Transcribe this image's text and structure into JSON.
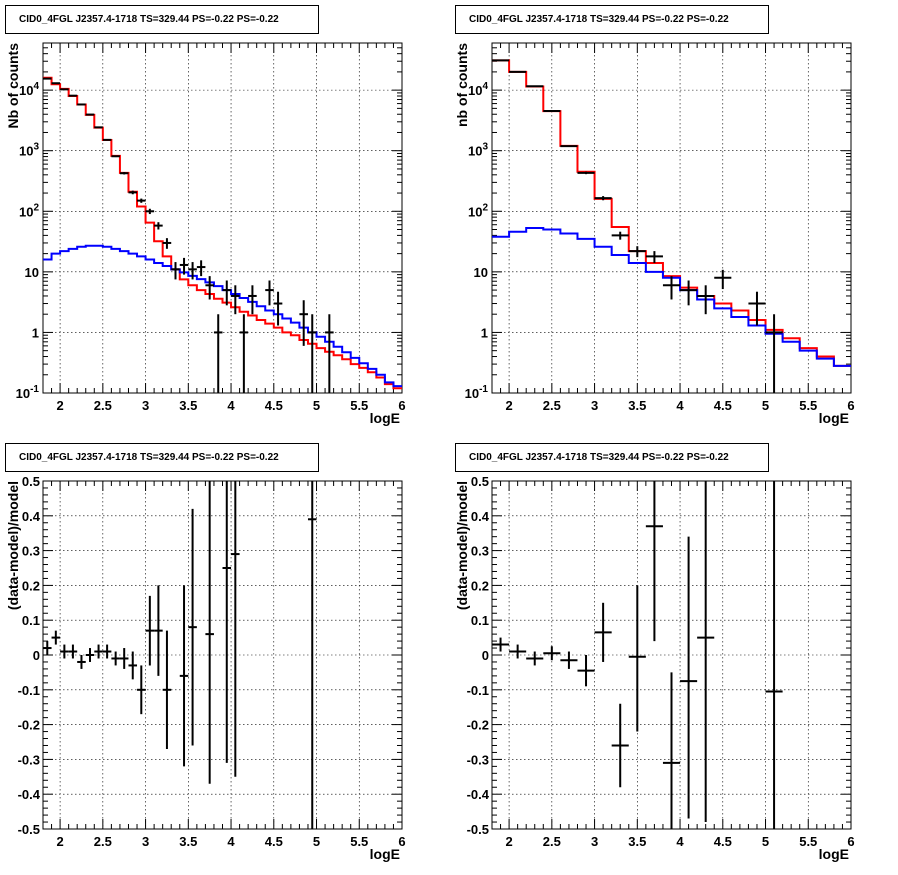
{
  "chart_data": [
    {
      "type": "step-histogram",
      "scale": "log",
      "title": "CID0_4FGL J2357.4-1718 TS=329.44 PS=-0.22 PS=-0.22",
      "xlabel": "logE",
      "ylabel": "Nb of counts",
      "xlim": [
        1.8,
        6.0
      ],
      "ylim": [
        0.1,
        60000
      ],
      "xticks": [
        "2",
        "2.5",
        "3",
        "3.5",
        "4",
        "4.5",
        "5",
        "5.5",
        "6"
      ],
      "yticks": [
        "10^-1",
        "1",
        "10",
        "10^2",
        "10^3",
        "10^4"
      ],
      "grid": true,
      "bin_edges": [
        1.8,
        1.9,
        2.0,
        2.1,
        2.2,
        2.3,
        2.4,
        2.5,
        2.6,
        2.7,
        2.8,
        2.9,
        3.0,
        3.1,
        3.2,
        3.3,
        3.4,
        3.5,
        3.6,
        3.7,
        3.8,
        3.9,
        4.0,
        4.1,
        4.2,
        4.3,
        4.4,
        4.5,
        4.6,
        4.7,
        4.8,
        4.9,
        5.0,
        5.1,
        5.2,
        5.3,
        5.4,
        5.5,
        5.6,
        5.7,
        5.8,
        5.9,
        6.0
      ],
      "series": [
        {
          "color": "#ff0000",
          "values": [
            16000,
            12500,
            10500,
            8000,
            5800,
            3900,
            2400,
            1500,
            820,
            430,
            210,
            120,
            65,
            32,
            18,
            11,
            7.5,
            6,
            5,
            4.3,
            3.6,
            3.1,
            2.6,
            2.2,
            1.9,
            1.6,
            1.4,
            1.2,
            1.0,
            0.9,
            0.75,
            0.65,
            0.55,
            0.48,
            0.42,
            0.36,
            0.3,
            0.26,
            0.22,
            0.18,
            0.14,
            0.12
          ]
        },
        {
          "color": "#0000ff",
          "values": [
            16,
            20,
            22,
            24,
            26,
            27,
            27,
            26,
            24,
            22,
            20,
            18,
            16,
            14,
            12.5,
            11,
            9.8,
            8.6,
            7.6,
            6.7,
            5.8,
            5.0,
            4.3,
            3.7,
            3.2,
            2.7,
            2.3,
            2.0,
            1.7,
            1.45,
            1.2,
            1.0,
            0.85,
            0.7,
            0.58,
            0.47,
            0.38,
            0.31,
            0.25,
            0.2,
            0.15,
            0.13
          ]
        }
      ],
      "points": [
        {
          "x": 1.85,
          "y": 15500,
          "xerr": 0.05,
          "ylo": 15300,
          "yhi": 15700
        },
        {
          "x": 1.95,
          "y": 13000,
          "xerr": 0.05,
          "ylo": 12800,
          "yhi": 13200
        },
        {
          "x": 2.05,
          "y": 10300,
          "xerr": 0.05,
          "ylo": 10100,
          "yhi": 10500
        },
        {
          "x": 2.15,
          "y": 8100,
          "xerr": 0.05,
          "ylo": 7950,
          "yhi": 8250
        },
        {
          "x": 2.25,
          "y": 5800,
          "xerr": 0.05,
          "ylo": 5700,
          "yhi": 5900
        },
        {
          "x": 2.35,
          "y": 3950,
          "xerr": 0.05,
          "ylo": 3880,
          "yhi": 4020
        },
        {
          "x": 2.45,
          "y": 2430,
          "xerr": 0.05,
          "ylo": 2380,
          "yhi": 2480
        },
        {
          "x": 2.55,
          "y": 1510,
          "xerr": 0.05,
          "ylo": 1470,
          "yhi": 1550
        },
        {
          "x": 2.65,
          "y": 810,
          "xerr": 0.05,
          "ylo": 785,
          "yhi": 835
        },
        {
          "x": 2.75,
          "y": 425,
          "xerr": 0.05,
          "ylo": 405,
          "yhi": 445
        },
        {
          "x": 2.85,
          "y": 205,
          "xerr": 0.05,
          "ylo": 191,
          "yhi": 219
        },
        {
          "x": 2.95,
          "y": 150,
          "xerr": 0.05,
          "ylo": 138,
          "yhi": 162
        },
        {
          "x": 3.05,
          "y": 100,
          "xerr": 0.05,
          "ylo": 90,
          "yhi": 110
        },
        {
          "x": 3.15,
          "y": 58,
          "xerr": 0.05,
          "ylo": 50,
          "yhi": 66
        },
        {
          "x": 3.25,
          "y": 30,
          "xerr": 0.05,
          "ylo": 24,
          "yhi": 36
        },
        {
          "x": 3.35,
          "y": 11,
          "xerr": 0.05,
          "ylo": 7.5,
          "yhi": 14.5
        },
        {
          "x": 3.45,
          "y": 13,
          "xerr": 0.05,
          "ylo": 9,
          "yhi": 17
        },
        {
          "x": 3.55,
          "y": 11,
          "xerr": 0.05,
          "ylo": 7.5,
          "yhi": 14.5
        },
        {
          "x": 3.65,
          "y": 12,
          "xerr": 0.05,
          "ylo": 8.5,
          "yhi": 15.5
        },
        {
          "x": 3.75,
          "y": 6,
          "xerr": 0.05,
          "ylo": 3.5,
          "yhi": 8.5
        },
        {
          "x": 3.85,
          "y": 1,
          "xerr": 0.05,
          "ylo": 0.1,
          "yhi": 2
        },
        {
          "x": 3.95,
          "y": 5,
          "xerr": 0.05,
          "ylo": 2.8,
          "yhi": 7.2
        },
        {
          "x": 4.05,
          "y": 4,
          "xerr": 0.05,
          "ylo": 2,
          "yhi": 6
        },
        {
          "x": 4.15,
          "y": 1,
          "xerr": 0.05,
          "ylo": 0.1,
          "yhi": 2
        },
        {
          "x": 4.25,
          "y": 4,
          "xerr": 0.05,
          "ylo": 2,
          "yhi": 6
        },
        {
          "x": 4.45,
          "y": 5,
          "xerr": 0.05,
          "ylo": 2.8,
          "yhi": 7.2
        },
        {
          "x": 4.55,
          "y": 3,
          "xerr": 0.05,
          "ylo": 1.3,
          "yhi": 4.7
        },
        {
          "x": 4.85,
          "y": 2,
          "xerr": 0.05,
          "ylo": 0.6,
          "yhi": 3.4
        },
        {
          "x": 4.95,
          "y": 1,
          "xerr": 0.05,
          "ylo": 0.1,
          "yhi": 2
        },
        {
          "x": 5.15,
          "y": 1,
          "xerr": 0.05,
          "ylo": 0.1,
          "yhi": 2
        }
      ]
    },
    {
      "type": "step-histogram",
      "scale": "log",
      "title": "CID0_4FGL J2357.4-1718 TS=329.44 PS=-0.22 PS=-0.22",
      "xlabel": "logE",
      "ylabel": "nb of counts",
      "xlim": [
        1.8,
        6.0
      ],
      "ylim": [
        0.1,
        60000
      ],
      "xticks": [
        "2",
        "2.5",
        "3",
        "3.5",
        "4",
        "4.5",
        "5",
        "5.5",
        "6"
      ],
      "yticks": [
        "10^-1",
        "1",
        "10",
        "10^2",
        "10^3",
        "10^4"
      ],
      "grid": true,
      "bin_edges": [
        1.8,
        2.0,
        2.2,
        2.4,
        2.6,
        2.8,
        3.0,
        3.2,
        3.4,
        3.6,
        3.8,
        4.0,
        4.2,
        4.4,
        4.6,
        4.8,
        5.0,
        5.2,
        5.4,
        5.6,
        5.8,
        6.0
      ],
      "series": [
        {
          "color": "#ff0000",
          "values": [
            31000,
            20000,
            11500,
            4500,
            1200,
            450,
            160,
            55,
            22,
            14,
            8.5,
            5.5,
            4,
            3,
            2.3,
            1.6,
            1.1,
            0.8,
            0.55,
            0.4,
            0.28
          ]
        },
        {
          "color": "#0000ff",
          "values": [
            38,
            46,
            53,
            50,
            43,
            35,
            26,
            19,
            14,
            10,
            8,
            5,
            3.5,
            2.5,
            1.8,
            1.3,
            0.95,
            0.7,
            0.5,
            0.37,
            0.28
          ]
        }
      ],
      "points": [
        {
          "x": 1.9,
          "y": 31000,
          "xerr": 0.1,
          "ylo": 30700,
          "yhi": 31300
        },
        {
          "x": 2.1,
          "y": 20000,
          "xerr": 0.1,
          "ylo": 19800,
          "yhi": 20200
        },
        {
          "x": 2.3,
          "y": 11600,
          "xerr": 0.1,
          "ylo": 11400,
          "yhi": 11800
        },
        {
          "x": 2.5,
          "y": 4520,
          "xerr": 0.1,
          "ylo": 4450,
          "yhi": 4590
        },
        {
          "x": 2.7,
          "y": 1190,
          "xerr": 0.1,
          "ylo": 1160,
          "yhi": 1220
        },
        {
          "x": 2.9,
          "y": 430,
          "xerr": 0.1,
          "ylo": 410,
          "yhi": 450
        },
        {
          "x": 3.1,
          "y": 165,
          "xerr": 0.1,
          "ylo": 152,
          "yhi": 178
        },
        {
          "x": 3.3,
          "y": 40,
          "xerr": 0.1,
          "ylo": 34,
          "yhi": 46
        },
        {
          "x": 3.5,
          "y": 22,
          "xerr": 0.1,
          "ylo": 17.5,
          "yhi": 26.5
        },
        {
          "x": 3.7,
          "y": 18,
          "xerr": 0.1,
          "ylo": 14,
          "yhi": 22
        },
        {
          "x": 3.9,
          "y": 6,
          "xerr": 0.1,
          "ylo": 3.5,
          "yhi": 8.5
        },
        {
          "x": 4.1,
          "y": 5,
          "xerr": 0.1,
          "ylo": 2.8,
          "yhi": 7.2
        },
        {
          "x": 4.3,
          "y": 4,
          "xerr": 0.1,
          "ylo": 2,
          "yhi": 6
        },
        {
          "x": 4.5,
          "y": 8,
          "xerr": 0.1,
          "ylo": 5.2,
          "yhi": 10.8
        },
        {
          "x": 4.9,
          "y": 3,
          "xerr": 0.1,
          "ylo": 1.3,
          "yhi": 4.7
        },
        {
          "x": 5.1,
          "y": 1,
          "xerr": 0.1,
          "ylo": 0.1,
          "yhi": 2
        }
      ]
    },
    {
      "type": "scatter-errorbar",
      "scale": "linear",
      "title": "CID0_4FGL J2357.4-1718 TS=329.44 PS=-0.22 PS=-0.22",
      "xlabel": "logE",
      "ylabel": "(data-model)/model",
      "xlim": [
        1.8,
        6.0
      ],
      "ylim": [
        -0.5,
        0.5
      ],
      "xticks": [
        "2",
        "2.5",
        "3",
        "3.5",
        "4",
        "4.5",
        "5",
        "5.5",
        "6"
      ],
      "yticks": [
        "-0.5",
        "-0.4",
        "-0.3",
        "-0.2",
        "-0.1",
        "0",
        "0.1",
        "0.2",
        "0.3",
        "0.4",
        "0.5"
      ],
      "grid": true,
      "points": [
        {
          "x": 1.85,
          "y": 0.02,
          "xerr": 0.05,
          "ylo": 0.0,
          "yhi": 0.04
        },
        {
          "x": 1.95,
          "y": 0.05,
          "xerr": 0.05,
          "ylo": 0.03,
          "yhi": 0.07
        },
        {
          "x": 2.05,
          "y": 0.01,
          "xerr": 0.05,
          "ylo": -0.01,
          "yhi": 0.03
        },
        {
          "x": 2.15,
          "y": 0.01,
          "xerr": 0.05,
          "ylo": -0.01,
          "yhi": 0.03
        },
        {
          "x": 2.25,
          "y": -0.02,
          "xerr": 0.05,
          "ylo": -0.04,
          "yhi": 0.0
        },
        {
          "x": 2.35,
          "y": 0.0,
          "xerr": 0.05,
          "ylo": -0.02,
          "yhi": 0.02
        },
        {
          "x": 2.45,
          "y": 0.01,
          "xerr": 0.05,
          "ylo": -0.01,
          "yhi": 0.03
        },
        {
          "x": 2.55,
          "y": 0.01,
          "xerr": 0.05,
          "ylo": -0.01,
          "yhi": 0.03
        },
        {
          "x": 2.65,
          "y": -0.01,
          "xerr": 0.05,
          "ylo": -0.03,
          "yhi": 0.01
        },
        {
          "x": 2.75,
          "y": -0.01,
          "xerr": 0.05,
          "ylo": -0.04,
          "yhi": 0.02
        },
        {
          "x": 2.85,
          "y": -0.03,
          "xerr": 0.05,
          "ylo": -0.07,
          "yhi": 0.01
        },
        {
          "x": 2.95,
          "y": -0.1,
          "xerr": 0.05,
          "ylo": -0.17,
          "yhi": -0.03
        },
        {
          "x": 3.05,
          "y": 0.07,
          "xerr": 0.05,
          "ylo": -0.03,
          "yhi": 0.17
        },
        {
          "x": 3.15,
          "y": 0.07,
          "xerr": 0.05,
          "ylo": -0.06,
          "yhi": 0.2
        },
        {
          "x": 3.25,
          "y": -0.1,
          "xerr": 0.05,
          "ylo": -0.27,
          "yhi": 0.07
        },
        {
          "x": 3.45,
          "y": -0.06,
          "xerr": 0.05,
          "ylo": -0.32,
          "yhi": 0.2
        },
        {
          "x": 3.55,
          "y": 0.08,
          "xerr": 0.05,
          "ylo": -0.26,
          "yhi": 0.42
        },
        {
          "x": 3.75,
          "y": 0.06,
          "xerr": 0.05,
          "ylo": -0.37,
          "yhi": 0.5
        },
        {
          "x": 3.95,
          "y": 0.25,
          "xerr": 0.05,
          "ylo": -0.31,
          "yhi": 0.5
        },
        {
          "x": 4.05,
          "y": 0.29,
          "xerr": 0.05,
          "ylo": -0.35,
          "yhi": 0.5
        },
        {
          "x": 4.95,
          "y": 0.39,
          "xerr": 0.05,
          "ylo": -0.5,
          "yhi": 0.5
        }
      ]
    },
    {
      "type": "scatter-errorbar",
      "scale": "linear",
      "title": "CID0_4FGL J2357.4-1718 TS=329.44 PS=-0.22 PS=-0.22",
      "xlabel": "logE",
      "ylabel": "(data-model)/model",
      "xlim": [
        1.8,
        6.0
      ],
      "ylim": [
        -0.5,
        0.5
      ],
      "xticks": [
        "2",
        "2.5",
        "3",
        "3.5",
        "4",
        "4.5",
        "5",
        "5.5",
        "6"
      ],
      "yticks": [
        "-0.5",
        "-0.4",
        "-0.3",
        "-0.2",
        "-0.1",
        "0",
        "0.1",
        "0.2",
        "0.3",
        "0.4",
        "0.5"
      ],
      "grid": true,
      "points": [
        {
          "x": 1.9,
          "y": 0.03,
          "xerr": 0.1,
          "ylo": 0.01,
          "yhi": 0.05
        },
        {
          "x": 2.1,
          "y": 0.01,
          "xerr": 0.1,
          "ylo": -0.01,
          "yhi": 0.03
        },
        {
          "x": 2.3,
          "y": -0.01,
          "xerr": 0.1,
          "ylo": -0.03,
          "yhi": 0.01
        },
        {
          "x": 2.5,
          "y": 0.005,
          "xerr": 0.1,
          "ylo": -0.015,
          "yhi": 0.025
        },
        {
          "x": 2.7,
          "y": -0.015,
          "xerr": 0.1,
          "ylo": -0.04,
          "yhi": 0.01
        },
        {
          "x": 2.9,
          "y": -0.045,
          "xerr": 0.1,
          "ylo": -0.09,
          "yhi": 0.0
        },
        {
          "x": 3.1,
          "y": 0.065,
          "xerr": 0.1,
          "ylo": -0.02,
          "yhi": 0.15
        },
        {
          "x": 3.3,
          "y": -0.26,
          "xerr": 0.1,
          "ylo": -0.38,
          "yhi": -0.14
        },
        {
          "x": 3.5,
          "y": -0.005,
          "xerr": 0.1,
          "ylo": -0.22,
          "yhi": 0.2
        },
        {
          "x": 3.7,
          "y": 0.37,
          "xerr": 0.1,
          "ylo": 0.04,
          "yhi": 0.5
        },
        {
          "x": 3.9,
          "y": -0.31,
          "xerr": 0.1,
          "ylo": -0.5,
          "yhi": -0.05
        },
        {
          "x": 4.1,
          "y": -0.075,
          "xerr": 0.1,
          "ylo": -0.47,
          "yhi": 0.34
        },
        {
          "x": 4.3,
          "y": 0.05,
          "xerr": 0.1,
          "ylo": -0.48,
          "yhi": 0.5
        },
        {
          "x": 5.1,
          "y": -0.105,
          "xerr": 0.1,
          "ylo": -0.5,
          "yhi": 0.5
        }
      ]
    }
  ]
}
